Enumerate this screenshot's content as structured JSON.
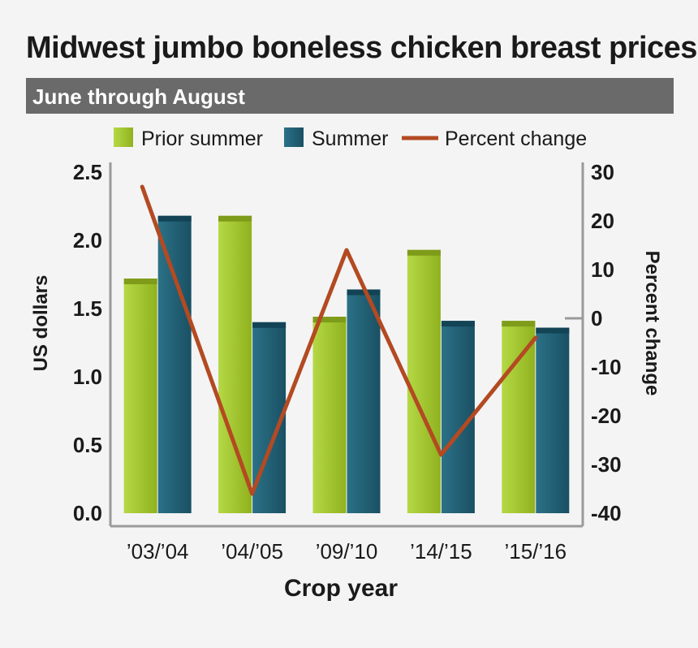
{
  "chart_data": {
    "type": "bar",
    "title": "Midwest jumbo boneless chicken breast prices",
    "subtitle": "June through August",
    "xlabel": "Crop year",
    "ylabel": "US dollars",
    "y2label": "Percent change",
    "categories": [
      "’03/’04",
      "’04/’05",
      "’09/’10",
      "’14/’15",
      "’15/’16"
    ],
    "series": [
      {
        "name": "Prior summer",
        "type": "bar",
        "axis": "left",
        "color": "#9bbf22",
        "values": [
          1.72,
          2.18,
          1.44,
          1.93,
          1.41
        ]
      },
      {
        "name": "Summer",
        "type": "bar",
        "axis": "left",
        "color": "#1f5f75",
        "values": [
          2.18,
          1.4,
          1.64,
          1.41,
          1.36
        ]
      },
      {
        "name": "Percent change",
        "type": "line",
        "axis": "right",
        "color": "#b34a22",
        "values": [
          27,
          -36,
          14,
          -28,
          -4
        ]
      }
    ],
    "ylim": [
      0,
      2.5
    ],
    "y2lim": [
      -40,
      30
    ],
    "yticks": [
      "0.0",
      "0.5",
      "1.0",
      "1.5",
      "2.0",
      "2.5"
    ],
    "y2ticks": [
      "-40",
      "-30",
      "-20",
      "-10",
      "0",
      "10",
      "20",
      "30"
    ],
    "legend_position": "top"
  }
}
